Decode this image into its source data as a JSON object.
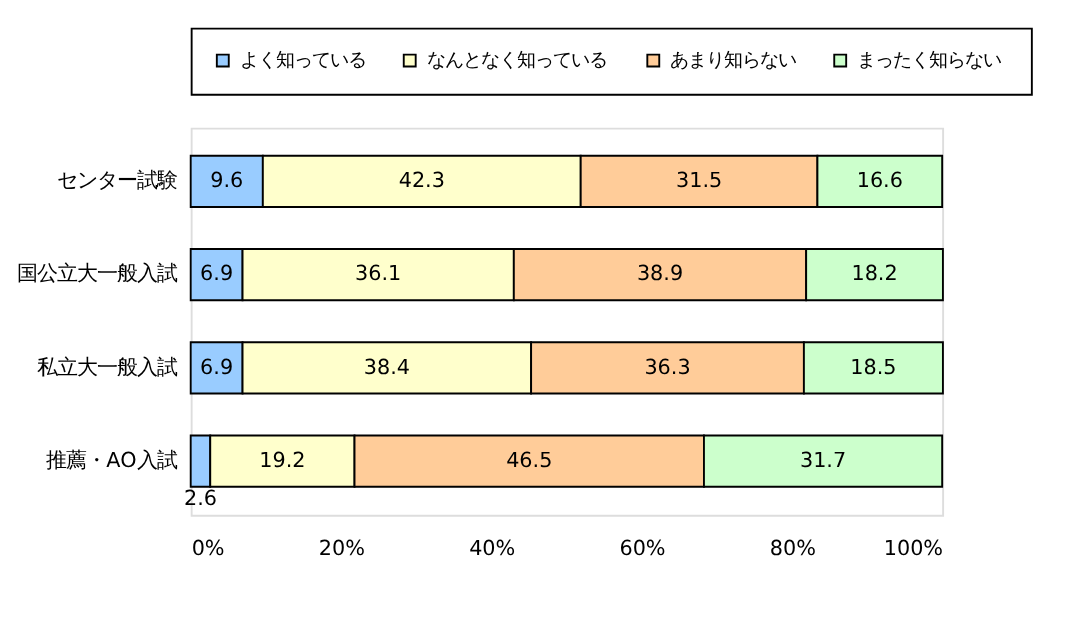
{
  "chart_data": {
    "type": "bar",
    "orientation": "horizontal",
    "stacked": true,
    "categories": [
      "センター試験",
      "国公立大一般入試",
      "私立大一般入試",
      "推薦・AO入試"
    ],
    "series": [
      {
        "name": "よく知っている",
        "color": "#99ccff",
        "values": [
          9.6,
          6.9,
          6.9,
          2.6
        ]
      },
      {
        "name": "なんとなく知っている",
        "color": "#ffffcc",
        "values": [
          42.3,
          36.1,
          38.4,
          19.2
        ]
      },
      {
        "name": "あまり知らない",
        "color": "#ffcc99",
        "values": [
          31.5,
          38.9,
          36.3,
          46.5
        ]
      },
      {
        "name": "まったく知らない",
        "color": "#ccffcc",
        "values": [
          16.6,
          18.2,
          18.5,
          31.7
        ]
      }
    ],
    "xlim": [
      0,
      100
    ],
    "xticks": [
      {
        "value": 0,
        "label": "0%"
      },
      {
        "value": 20,
        "label": "20%"
      },
      {
        "value": 40,
        "label": "40%"
      },
      {
        "value": 60,
        "label": "60%"
      },
      {
        "value": 80,
        "label": "80%"
      },
      {
        "value": 100,
        "label": "100%"
      }
    ],
    "data_labels": true,
    "grid": false,
    "legend": "top"
  }
}
